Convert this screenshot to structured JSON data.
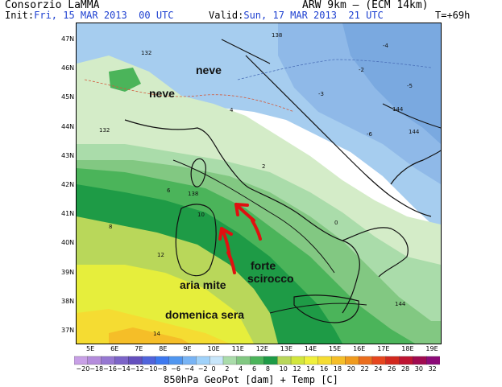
{
  "header": {
    "org": "Consorzio LaMMA",
    "init_prefix": "Init:",
    "init_value": "Fri, 15 MAR 2013  00 UTC",
    "model": "ARW 9km — (ECM 14km)",
    "valid_prefix": "Valid:",
    "valid_value": "Sun, 17 MAR 2013  21 UTC",
    "step": "T=+69h"
  },
  "axes": {
    "latitudes": [
      "47N",
      "46N",
      "45N",
      "44N",
      "43N",
      "42N",
      "41N",
      "40N",
      "39N",
      "38N",
      "37N"
    ],
    "longitudes": [
      "5E",
      "6E",
      "7E",
      "8E",
      "9E",
      "10E",
      "11E",
      "12E",
      "13E",
      "14E",
      "15E",
      "16E",
      "17E",
      "18E",
      "19E"
    ]
  },
  "colorbar": {
    "labels": [
      "−20",
      "−18",
      "−16",
      "−14",
      "−12",
      "−10",
      "−8",
      "−6",
      "−4",
      "−2",
      "0",
      "2",
      "4",
      "6",
      "8",
      "10",
      "12",
      "14",
      "16",
      "18",
      "20",
      "22",
      "24",
      "26",
      "28",
      "30",
      "32"
    ],
    "colors": [
      "#c8a0e6",
      "#b48cdc",
      "#9678d2",
      "#7c64c8",
      "#6450be",
      "#5064dc",
      "#3c78f0",
      "#5096f0",
      "#78b4f5",
      "#a0d2fa",
      "#c8e6fa",
      "#aadcaa",
      "#82c882",
      "#4bb45a",
      "#1e9b46",
      "#b9d75a",
      "#d2e63c",
      "#f0f03c",
      "#f5dc32",
      "#f5be28",
      "#f09b1e",
      "#eb6e1e",
      "#e6461e",
      "#d2281e",
      "#be1432",
      "#a00a50",
      "#8c0a78"
    ]
  },
  "caption": "850hPa GeoPot [dam] + Temp [C]",
  "annotations": {
    "neve1": "neve",
    "neve2": "neve",
    "forte": "forte",
    "scirocco": "scirocco",
    "aria_mite": "aria mite",
    "domenica": "domenica sera"
  },
  "contour_labels": [
    "138",
    "132",
    "144",
    "144",
    "138",
    "144",
    "132",
    "6",
    "8",
    "10",
    "12",
    "14",
    "4",
    "2",
    "0",
    "-2",
    "-3",
    "-4",
    "-5",
    "-6"
  ]
}
